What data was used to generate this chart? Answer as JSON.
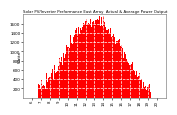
{
  "title": "Solar PV/Inverter Performance East Array  Actual & Average Power Output",
  "ylabel_left": "Watts",
  "bg_color": "#ffffff",
  "plot_bg_color": "#ffffff",
  "grid_color": "#aaaaaa",
  "bar_color": "#ff0000",
  "ylim": [
    0,
    1800
  ],
  "yticks": [
    200,
    400,
    600,
    800,
    1000,
    1200,
    1400,
    1600
  ],
  "xlim_hours": [
    5,
    21
  ],
  "xtick_hours": [
    6,
    7,
    8,
    9,
    10,
    11,
    12,
    13,
    14,
    15,
    16,
    17,
    18,
    19,
    20
  ],
  "num_points": 288,
  "peak_index": 144,
  "peak_value": 1700,
  "sigma": 55,
  "noise_scale": 80,
  "zero_before": 30,
  "zero_after": 258
}
